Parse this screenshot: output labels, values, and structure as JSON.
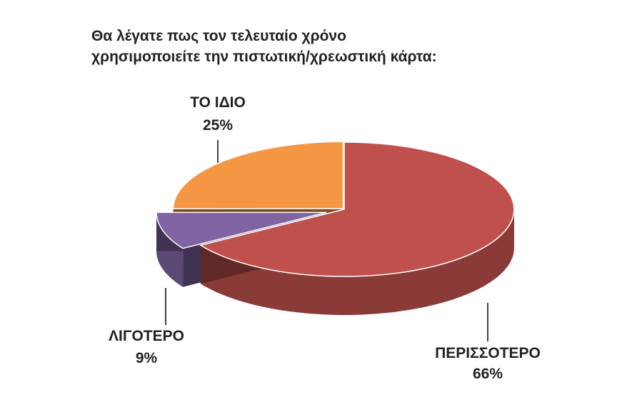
{
  "title_lines": [
    "Θα λέγατε πως τον τελευταίο χρόνο",
    "χρησιμοποιείτε την πιστωτική/χρεωστική κάρτα:"
  ],
  "chart_data": {
    "type": "pie",
    "style": "3d-exploded",
    "title": "Θα λέγατε πως τον τελευταίο χρόνο χρησιμοποιείτε την πιστωτική/χρεωστική κάρτα:",
    "slices": [
      {
        "label": "ΠΕΡΙΣΣΟΤΕΡΟ",
        "value": 66,
        "value_label": "66%",
        "color": "#c0504d"
      },
      {
        "label": "ΛΙΓΟΤΕΡΟ",
        "value": 9,
        "value_label": "9%",
        "color": "#8064a2"
      },
      {
        "label": "ΤΟ ΙΔΙΟ",
        "value": 25,
        "value_label": "25%",
        "color": "#f59645"
      }
    ],
    "legend": "none"
  }
}
